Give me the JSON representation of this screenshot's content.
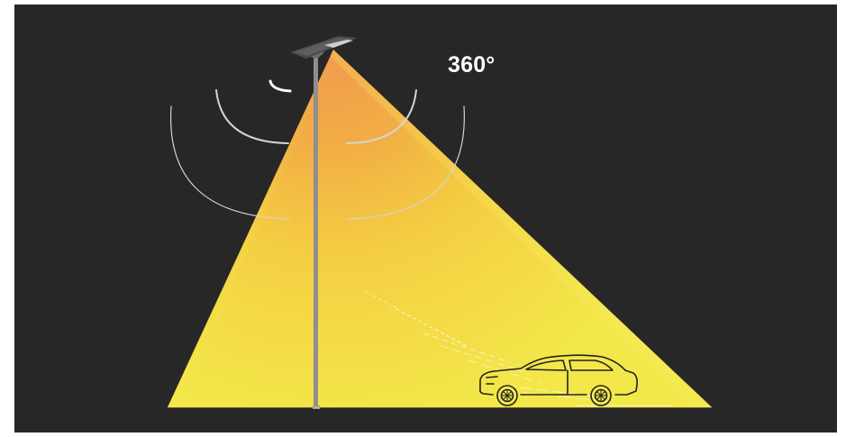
{
  "illustration": {
    "angle_label": "360°",
    "colors": {
      "background": "#272727",
      "frame": "#ffffff",
      "beam_core": "#f0a44a",
      "beam_mid": "#f3c13c",
      "beam_edge": "#f4e447",
      "pole": "#8f8f8f",
      "sensor_rings": "#d9d9d9",
      "car_outline": "#222222"
    },
    "icons": [
      "street-light-icon",
      "car-icon",
      "motion-sensor-rings"
    ]
  }
}
